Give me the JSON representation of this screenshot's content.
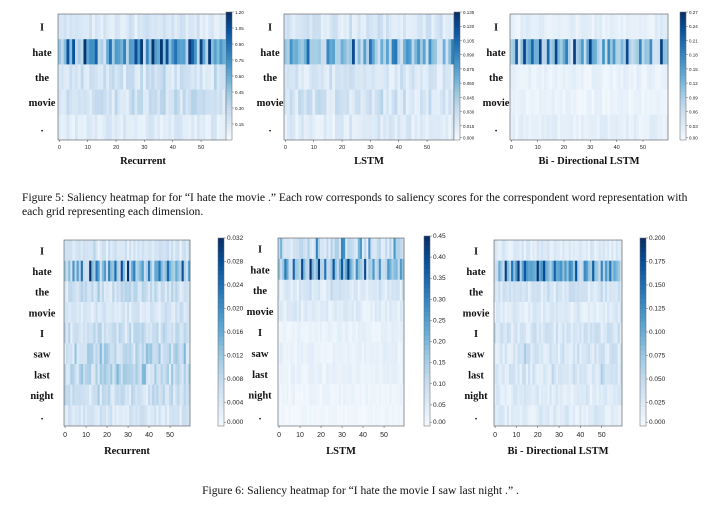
{
  "figure5": {
    "caption": "Figure 5: Saliency heatmap for for “I hate the movie .” Each row corresponds to saliency scores for the correspondent word representation with each grid representing each dimension.",
    "words": [
      "I",
      "hate",
      "the",
      "movie",
      "."
    ],
    "panels": [
      {
        "title": "Recurrent",
        "xticks": [
          "0",
          "10",
          "20",
          "30",
          "40",
          "50"
        ],
        "cticks": [
          "1.20",
          "1.05",
          "0.90",
          "0.75",
          "0.60",
          "0.45",
          "0.30",
          "0.15"
        ]
      },
      {
        "title": "LSTM",
        "xticks": [
          "0",
          "10",
          "20",
          "30",
          "40",
          "50"
        ],
        "cticks": [
          "0.135",
          "0.120",
          "0.105",
          "0.090",
          "0.075",
          "0.060",
          "0.045",
          "0.030",
          "0.015",
          "0.000"
        ]
      },
      {
        "title": "Bi - Directional LSTM",
        "xticks": [
          "0",
          "10",
          "20",
          "30",
          "40",
          "50"
        ],
        "cticks": [
          "0.27",
          "0.24",
          "0.21",
          "0.18",
          "0.15",
          "0.12",
          "0.09",
          "0.06",
          "0.03",
          "0.00"
        ]
      }
    ]
  },
  "figure6": {
    "caption": "Figure 6: Saliency heatmap for “I hate the movie I saw last night .” .",
    "words": [
      "I",
      "hate",
      "the",
      "movie",
      "I",
      "saw",
      "last",
      "night",
      "."
    ],
    "panels": [
      {
        "title": "Recurrent",
        "xticks": [
          "0",
          "10",
          "20",
          "30",
          "40",
          "50"
        ],
        "cticks": [
          "0.032",
          "0.028",
          "0.024",
          "0.020",
          "0.016",
          "0.012",
          "0.008",
          "0.004",
          "0.000"
        ]
      },
      {
        "title": "LSTM",
        "xticks": [
          "0",
          "10",
          "20",
          "30",
          "40",
          "50"
        ],
        "cticks": [
          "0.45",
          "0.40",
          "0.35",
          "0.30",
          "0.25",
          "0.20",
          "0.15",
          "0.10",
          "0.05",
          "0.00"
        ]
      },
      {
        "title": "Bi - Directional LSTM",
        "xticks": [
          "0",
          "10",
          "20",
          "30",
          "40",
          "50"
        ],
        "cticks": [
          "0.200",
          "0.175",
          "0.150",
          "0.125",
          "0.100",
          "0.075",
          "0.050",
          "0.025",
          "0.000"
        ]
      }
    ]
  },
  "chart_data": [
    {
      "type": "heatmap",
      "title": "Recurrent",
      "rows": [
        "I",
        "hate",
        "the",
        "movie",
        "."
      ],
      "x": {
        "ticks": [
          0,
          10,
          20,
          30,
          40,
          50
        ],
        "columns": 60
      },
      "colorbar": {
        "ticks": [
          1.2,
          1.05,
          0.9,
          0.75,
          0.6,
          0.45,
          0.3,
          0.15
        ]
      },
      "row_mean": [
        0.22,
        0.62,
        0.26,
        0.3,
        0.18
      ],
      "row_max": [
        0.45,
        1.2,
        0.55,
        0.6,
        0.35
      ],
      "strong_columns": {
        "hate": [
          3,
          5,
          9,
          12,
          13,
          18,
          20,
          23,
          27,
          29,
          31,
          33,
          36,
          38,
          41,
          46,
          47,
          50,
          53,
          55
        ]
      }
    },
    {
      "type": "heatmap",
      "title": "LSTM",
      "rows": [
        "I",
        "hate",
        "the",
        "movie",
        "."
      ],
      "x": {
        "ticks": [
          0,
          10,
          20,
          30,
          40,
          50
        ],
        "columns": 60
      },
      "colorbar": {
        "ticks": [
          0.135,
          0.12,
          0.105,
          0.09,
          0.075,
          0.06,
          0.045,
          0.03,
          0.015,
          0.0
        ]
      },
      "row_mean": [
        0.025,
        0.06,
        0.025,
        0.03,
        0.02
      ],
      "row_max": [
        0.05,
        0.135,
        0.05,
        0.06,
        0.045
      ],
      "strong_columns": {
        "hate": [
          2,
          8,
          15,
          24,
          30,
          38,
          39,
          43,
          44,
          47,
          51
        ]
      }
    },
    {
      "type": "heatmap",
      "title": "Bi - Directional LSTM",
      "rows": [
        "I",
        "hate",
        "the",
        "movie",
        "."
      ],
      "x": {
        "ticks": [
          0,
          10,
          20,
          30,
          40,
          50
        ],
        "columns": 60
      },
      "colorbar": {
        "ticks": [
          0.27,
          0.24,
          0.21,
          0.18,
          0.15,
          0.12,
          0.09,
          0.06,
          0.03,
          0.0
        ]
      },
      "row_mean": [
        0.03,
        0.12,
        0.025,
        0.02,
        0.03
      ],
      "row_max": [
        0.06,
        0.27,
        0.05,
        0.04,
        0.06
      ],
      "strong_columns": {
        "hate": [
          2,
          5,
          8,
          11,
          14,
          17,
          21,
          24,
          27,
          30,
          35,
          39,
          44,
          49,
          53,
          57
        ]
      }
    },
    {
      "type": "heatmap",
      "title": "Recurrent",
      "rows": [
        "I",
        "hate",
        "the",
        "movie",
        "I",
        "saw",
        "last",
        "night",
        "."
      ],
      "x": {
        "ticks": [
          0,
          10,
          20,
          30,
          40,
          50
        ],
        "columns": 60
      },
      "colorbar": {
        "ticks": [
          0.032,
          0.028,
          0.024,
          0.02,
          0.016,
          0.012,
          0.008,
          0.004,
          0.0
        ]
      },
      "row_mean": [
        0.006,
        0.016,
        0.008,
        0.006,
        0.008,
        0.01,
        0.01,
        0.008,
        0.006
      ],
      "row_max": [
        0.014,
        0.032,
        0.018,
        0.014,
        0.018,
        0.022,
        0.022,
        0.018,
        0.014
      ],
      "strong_columns": {
        "hate": [
          4,
          8,
          12,
          15,
          21,
          24,
          27,
          30,
          33,
          40,
          45,
          49,
          56
        ]
      }
    },
    {
      "type": "heatmap",
      "title": "LSTM",
      "rows": [
        "I",
        "hate",
        "the",
        "movie",
        "I",
        "saw",
        "last",
        "night",
        "."
      ],
      "x": {
        "ticks": [
          0,
          10,
          20,
          30,
          40,
          50
        ],
        "columns": 60
      },
      "colorbar": {
        "ticks": [
          0.45,
          0.4,
          0.35,
          0.3,
          0.25,
          0.2,
          0.15,
          0.1,
          0.05,
          0.0
        ]
      },
      "row_mean": [
        0.12,
        0.2,
        0.08,
        0.06,
        0.04,
        0.04,
        0.04,
        0.03,
        0.02
      ],
      "row_max": [
        0.45,
        0.45,
        0.2,
        0.12,
        0.08,
        0.08,
        0.08,
        0.06,
        0.05
      ],
      "strong_columns": {
        "hate": [
          3,
          7,
          11,
          15,
          19,
          22,
          26,
          30,
          33,
          37,
          41,
          45,
          48,
          52
        ]
      }
    },
    {
      "type": "heatmap",
      "title": "Bi - Directional LSTM",
      "rows": [
        "I",
        "hate",
        "the",
        "movie",
        "I",
        "saw",
        "last",
        "night",
        "."
      ],
      "x": {
        "ticks": [
          0,
          10,
          20,
          30,
          40,
          50
        ],
        "columns": 60
      },
      "colorbar": {
        "ticks": [
          0.2,
          0.175,
          0.15,
          0.125,
          0.1,
          0.075,
          0.05,
          0.025,
          0.0
        ]
      },
      "row_mean": [
        0.03,
        0.1,
        0.04,
        0.03,
        0.04,
        0.04,
        0.04,
        0.03,
        0.03
      ],
      "row_max": [
        0.06,
        0.2,
        0.08,
        0.06,
        0.08,
        0.1,
        0.1,
        0.06,
        0.06
      ],
      "strong_columns": {
        "hate": [
          5,
          8,
          11,
          14,
          17,
          20,
          23,
          28,
          31,
          35,
          38,
          42,
          46,
          50,
          54
        ]
      }
    }
  ]
}
